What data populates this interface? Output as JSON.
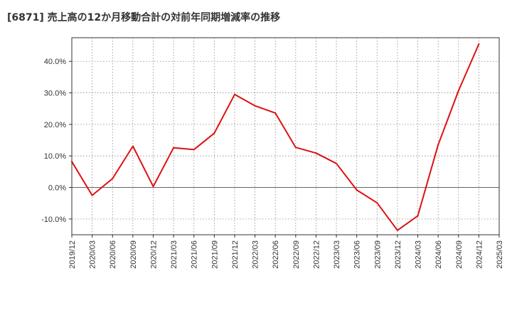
{
  "title": "[6871]  売上高の12か月移動合計の対前年同期増減率の推移",
  "colors": {
    "line": "#dd1111",
    "grid": "#888888",
    "zero_line": "#666666",
    "axis": "#333333",
    "background": "#ffffff"
  },
  "chart_data": {
    "type": "line",
    "title": "[6871]  売上高の12か月移動合計の対前年同期増減率の推移",
    "xlabel": "",
    "ylabel": "",
    "ylim": [
      -15,
      47.5
    ],
    "yticks": [
      -10,
      0,
      10,
      20,
      30,
      40
    ],
    "ytick_labels": [
      "-10.0%",
      "0.0%",
      "10.0%",
      "20.0%",
      "30.0%",
      "40.0%"
    ],
    "x_tick_labels": [
      "2019/12",
      "2020/03",
      "2020/06",
      "2020/09",
      "2020/12",
      "2021/03",
      "2021/06",
      "2021/09",
      "2021/12",
      "2022/03",
      "2022/06",
      "2022/09",
      "2022/12",
      "2023/03",
      "2023/06",
      "2023/09",
      "2023/12",
      "2024/03",
      "2024/06",
      "2024/09",
      "2024/12",
      "2025/03"
    ],
    "grid": true,
    "series": [
      {
        "name": "売上高の12か月移動合計の対前年同期増減率",
        "x": [
          "2019/12",
          "2020/03",
          "2020/06",
          "2020/09",
          "2020/12",
          "2021/03",
          "2021/06",
          "2021/09",
          "2021/12",
          "2022/03",
          "2022/06",
          "2022/09",
          "2022/12",
          "2023/03",
          "2023/06",
          "2023/09",
          "2023/12",
          "2024/03",
          "2024/06",
          "2024/09",
          "2024/12"
        ],
        "values": [
          8.2,
          -2.5,
          2.8,
          13.1,
          0.3,
          12.6,
          12.0,
          17.2,
          29.5,
          25.9,
          23.6,
          12.7,
          10.9,
          7.6,
          -0.8,
          -4.9,
          -13.6,
          -9.0,
          13.5,
          30.7,
          45.5
        ]
      }
    ]
  }
}
